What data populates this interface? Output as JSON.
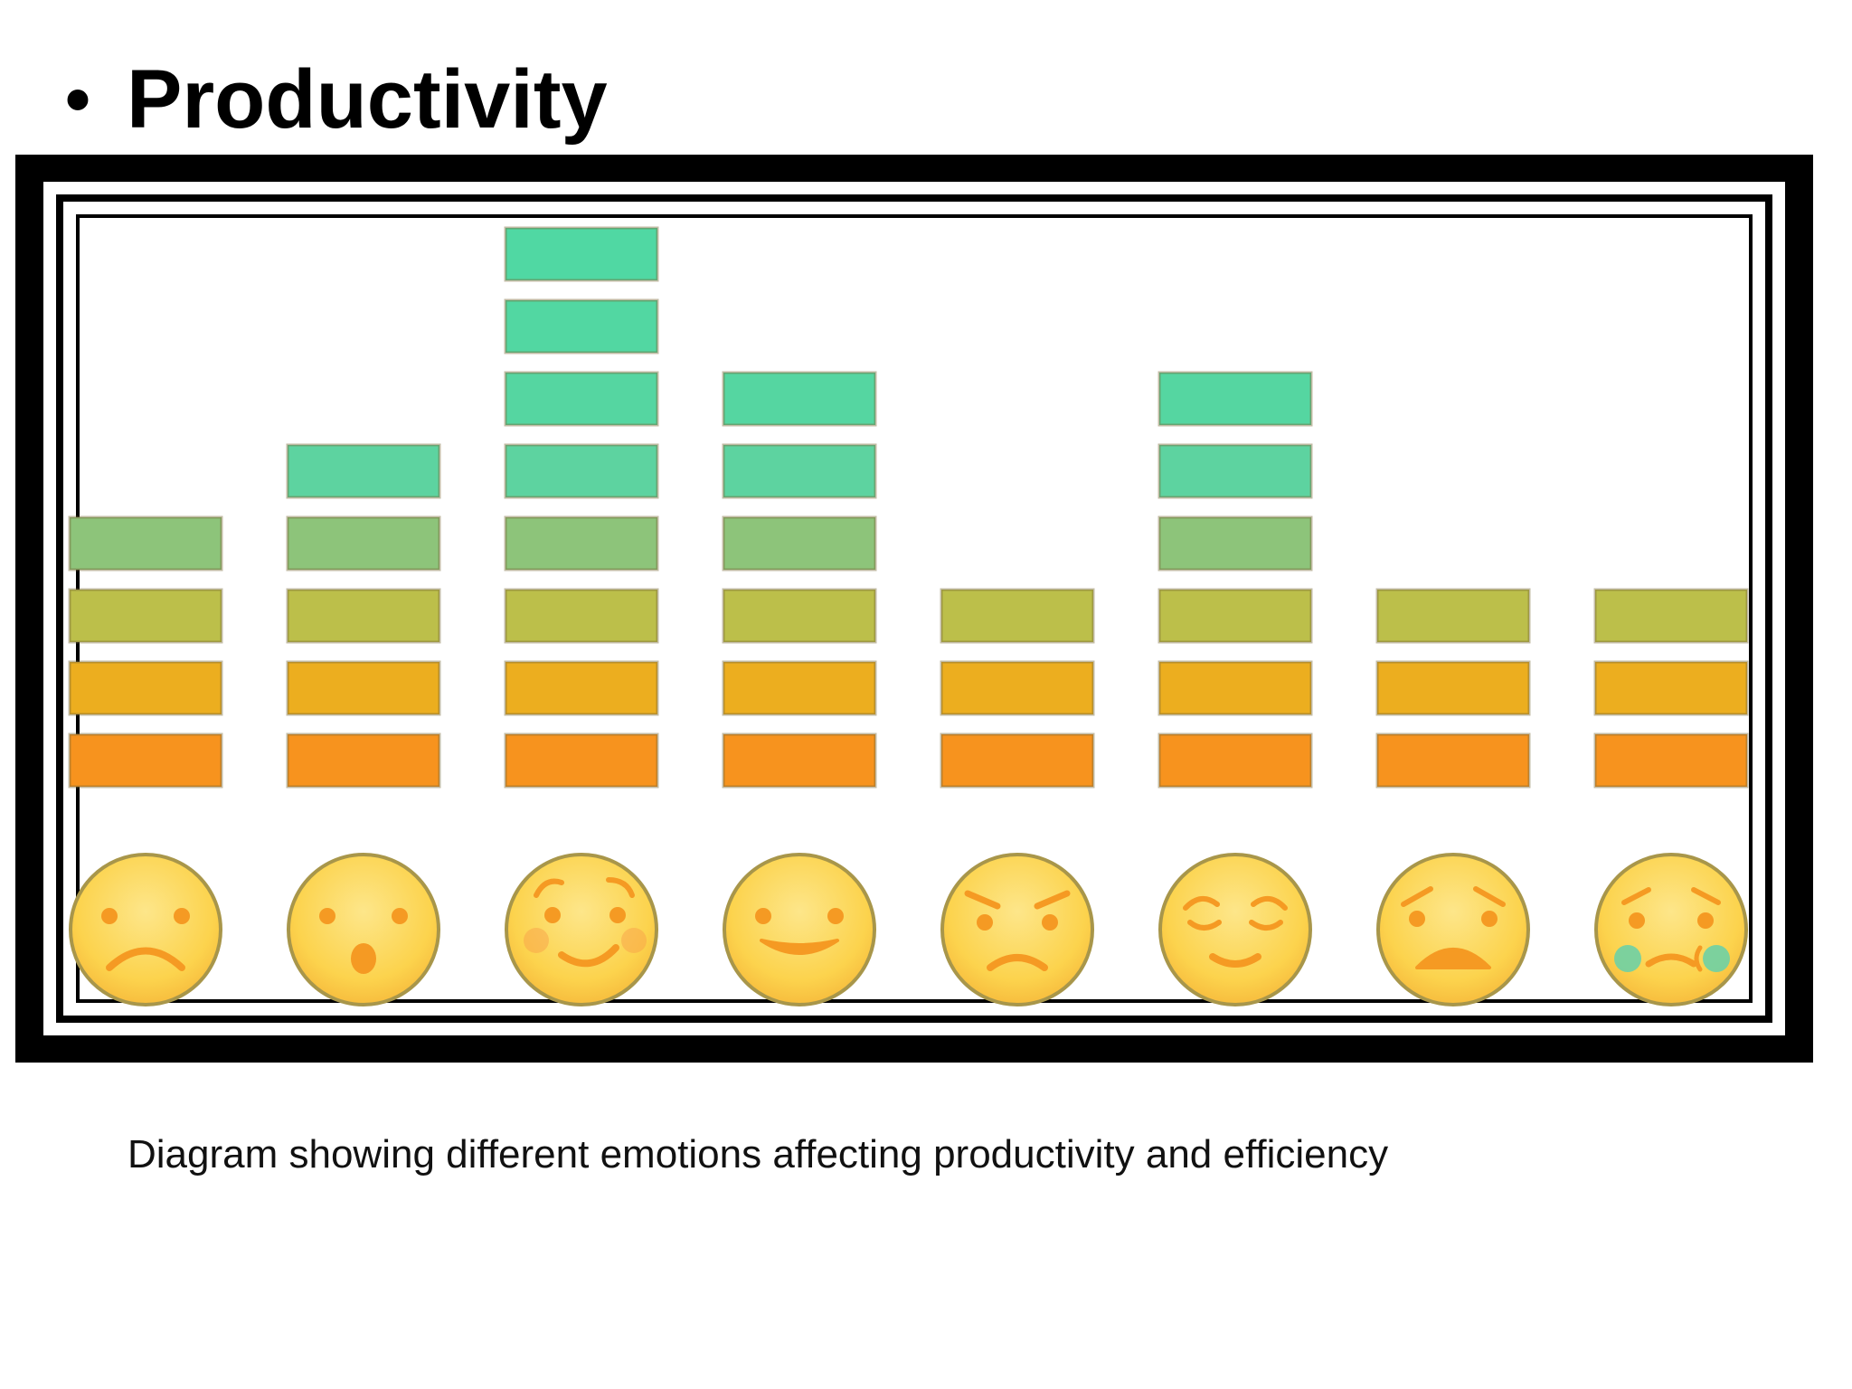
{
  "slide": {
    "bullet": "•",
    "title": "Productivity",
    "caption": "Diagram showing different emotions affecting productivity and efficiency"
  },
  "chart_data": {
    "type": "bar",
    "title": "",
    "xlabel": "",
    "ylabel": "",
    "ylim": [
      0,
      8
    ],
    "grid": false,
    "legend": "none",
    "categories": [
      "sad-face-icon",
      "surprised-face-icon",
      "blushing-face-icon",
      "happy-face-icon",
      "angry-face-icon",
      "relieved-face-icon",
      "worried-face-icon",
      "crying-face-icon"
    ],
    "values": [
      4,
      5,
      8,
      6,
      3,
      6,
      3,
      3
    ],
    "block_colors": [
      "#f7931e",
      "#ecae1f",
      "#bcbf4a",
      "#8dc47a",
      "#5dd3a0",
      "#55d6a1",
      "#52d7a2",
      "#50d8a3"
    ],
    "face_color": "#fcd34d",
    "face_outline": "#a8964a",
    "feature_color": "#f59a23",
    "tear_color": "#6ed0a5"
  }
}
